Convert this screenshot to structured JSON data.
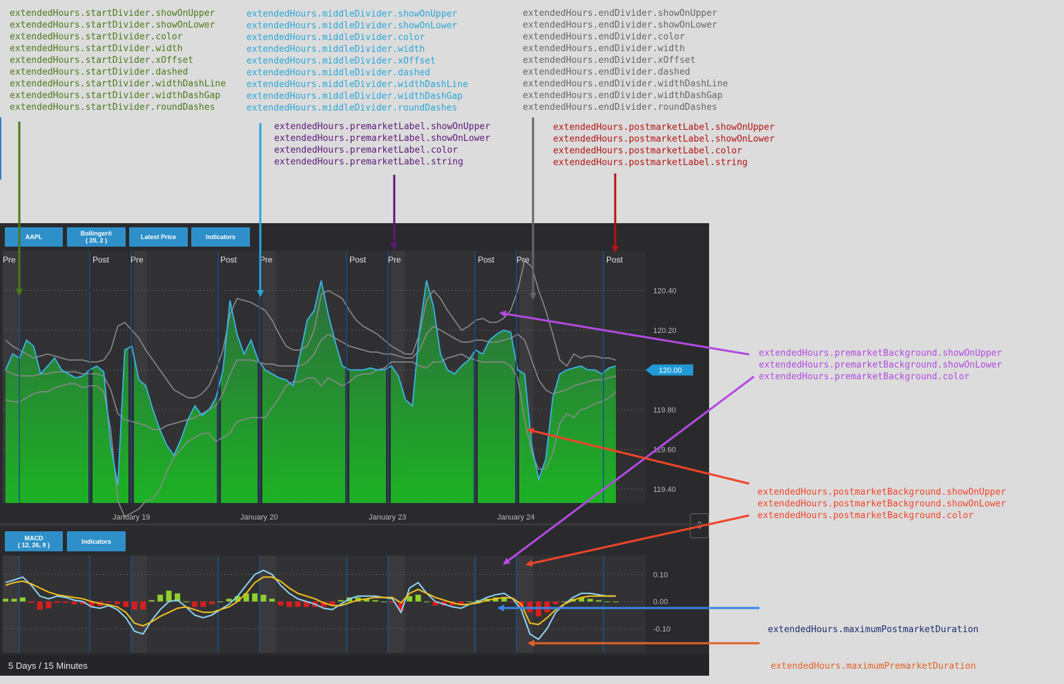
{
  "annotations": {
    "start_divider": {
      "color": "#4a7a1c",
      "lines": [
        "extendedHours.startDivider.showOnUpper",
        "extendedHours.startDivider.showOnLower",
        "extendedHours.startDivider.color",
        "extendedHours.startDivider.width",
        "extendedHours.startDivider.xOffset",
        "extendedHours.startDivider.dashed",
        "extendedHours.startDivider.widthDashLine",
        "extendedHours.startDivider.widthDashGap",
        "extendedHours.startDivider.roundDashes"
      ]
    },
    "middle_divider": {
      "color": "#2aa7d6",
      "lines": [
        "extendedHours.middleDivider.showOnUpper",
        "extendedHours.middleDivider.showOnLower",
        "extendedHours.middleDivider.color",
        "extendedHours.middleDivider.width",
        "extendedHours.middleDivider.xOffset",
        "extendedHours.middleDivider.dashed",
        "extendedHours.middleDivider.widthDashLine",
        "extendedHours.middleDivider.widthDashGap",
        "extendedHours.middleDivider.roundDashes"
      ]
    },
    "end_divider": {
      "color": "#666666",
      "lines": [
        "extendedHours.endDivider.showOnUpper",
        "extendedHours.endDivider.showOnLower",
        "extendedHours.endDivider.color",
        "extendedHours.endDivider.width",
        "extendedHours.endDivider.xOffset",
        "extendedHours.endDivider.dashed",
        "extendedHours.endDivider.widthDashLine",
        "extendedHours.endDivider.widthDashGap",
        "extendedHours.endDivider.roundDashes"
      ]
    },
    "premarket_label": {
      "color": "#5a1a78",
      "lines": [
        "extendedHours.premarketLabel.showOnUpper",
        "extendedHours.premarketLabel.showOnLower",
        "extendedHours.premarketLabel.color",
        "extendedHours.premarketLabel.string"
      ]
    },
    "postmarket_label": {
      "color": "#b31414",
      "lines": [
        "extendedHours.postmarketLabel.showOnUpper",
        "extendedHours.postmarketLabel.showOnLower",
        "extendedHours.postmarketLabel.color",
        "extendedHours.postmarketLabel.string"
      ]
    },
    "premarket_background": {
      "color": "#b24be0",
      "lines": [
        "extendedHours.premarketBackground.showOnUpper",
        "extendedHours.premarketBackground.showOnLower",
        "extendedHours.premarketBackground.color"
      ]
    },
    "postmarket_background": {
      "color": "#f0442a",
      "lines": [
        "extendedHours.postmarketBackground.showOnUpper",
        "extendedHours.postmarketBackground.showOnLower",
        "extendedHours.postmarketBackground.color"
      ]
    },
    "max_postmarket": {
      "color": "#1b2e6e",
      "text": "extendedHours.maximumPostmarketDuration"
    },
    "max_premarket": {
      "color": "#e2622a",
      "text": "extendedHours.maximumPremarketDuration"
    },
    "arrow_colors": {
      "green": "#4a7a1c",
      "blue": "#2aa7d6",
      "purple": "#5a1a78",
      "gray": "#666666",
      "red": "#b31414",
      "magenta": "#b24be0",
      "orange_red": "#f0442a",
      "bright_blue": "#3a84e8",
      "orange": "#e2622a"
    }
  },
  "toolbar_upper": [
    "AAPL",
    "Bollinger®\n( 20, 2 )",
    "Latest Price",
    "Indicators"
  ],
  "toolbar_lower": [
    "MACD\n( 12, 26, 9 )",
    "Indicators"
  ],
  "footer_text": "5 Days / 15 Minutes",
  "collapse_icon": "chevron-collapse-icon",
  "colors": {
    "accent": "#2f8fc8",
    "price_line": "#3ab4e8",
    "fill_top": "#2e6e3e",
    "fill_bottom": "#1cb824",
    "band": "#8a8a8a",
    "premarket_bg": "#3a3a3d",
    "postmarket_bg": "#2f2f31",
    "macd_line": "#8fd3f5",
    "signal_line": "#f2c21c",
    "hist_pos": "#8fd02a",
    "hist_neg": "#d81e1e"
  },
  "chart_data": [
    {
      "type": "line",
      "panel": "upper",
      "sessions": [
        {
          "pre": "Pre",
          "post": "Post"
        },
        {
          "pre": "Pre",
          "post": "Post"
        },
        {
          "pre": "Pre",
          "post": "Post"
        },
        {
          "pre": "Pre",
          "post": "Post"
        },
        {
          "pre": "Pre",
          "post": ""
        }
      ],
      "x_labels": [
        "January 19",
        "January 20",
        "January 23",
        "January 24"
      ],
      "ylim": [
        119.33,
        120.6
      ],
      "yticks": [
        "120.40",
        "120.20",
        "119.80",
        "119.60",
        "119.40"
      ],
      "latest_price": "120.00",
      "series": [
        {
          "values": [
            120.0,
            120.08,
            120.06,
            120.15,
            120.12,
            119.98,
            120.02,
            120.06,
            120.0,
            119.98,
            119.96,
            119.97,
            120.0,
            120.02,
            119.99,
            119.62,
            119.42,
            120.1,
            120.12,
            119.95,
            119.92,
            119.8,
            119.7,
            119.62,
            119.57,
            119.65,
            119.75,
            119.82,
            119.77,
            119.8,
            119.86,
            120.0,
            120.35,
            120.18,
            120.08,
            120.15,
            120.05,
            120.0,
            119.98,
            119.96,
            119.95,
            119.92,
            120.08,
            120.25,
            120.3,
            120.45,
            120.28,
            120.14,
            120.02,
            120.0,
            120.0,
            120.0,
            120.01,
            120.0,
            120.0,
            120.02,
            119.97,
            119.85,
            119.82,
            120.2,
            120.45,
            120.32,
            120.08,
            120.0,
            119.98,
            120.02,
            120.05,
            120.1,
            120.08,
            120.15,
            120.18,
            120.2,
            120.19,
            120.0,
            119.98,
            119.62,
            119.45,
            119.55,
            119.86,
            119.98,
            120.0,
            120.01,
            120.02,
            120.0,
            120.0,
            119.98,
            120.01,
            120.02
          ]
        },
        {
          "values": [
            120.15,
            120.12,
            120.1,
            120.08,
            120.06,
            120.07,
            120.08,
            120.07,
            120.06,
            120.05,
            120.05,
            120.05,
            120.04,
            120.04,
            120.05,
            120.1,
            120.22,
            120.24,
            120.2,
            120.16,
            120.1,
            120.05,
            120.0,
            119.95,
            119.9,
            119.88,
            119.86,
            119.86,
            119.88,
            119.92,
            120.0,
            120.1,
            120.28,
            120.36,
            120.35,
            120.34,
            120.32,
            120.3,
            120.25,
            120.18,
            120.12,
            120.1,
            120.1,
            120.12,
            120.2,
            120.38,
            120.4,
            120.38,
            120.36,
            120.3,
            120.25,
            120.22,
            120.2,
            120.18,
            120.15,
            120.12,
            120.1,
            120.08,
            120.08,
            120.18,
            120.35,
            120.4,
            120.36,
            120.3,
            120.25,
            120.2,
            120.22,
            120.25,
            120.26,
            120.24,
            120.24,
            120.26,
            120.3,
            120.4,
            120.55,
            120.52,
            120.4,
            120.3,
            120.18,
            120.05,
            120.02,
            120.08,
            120.06,
            120.07,
            120.07,
            120.06,
            120.06,
            120.05
          ]
        },
        {
          "values": [
            120.0,
            119.98,
            119.97,
            119.97,
            119.97,
            119.98,
            119.98,
            119.99,
            119.99,
            119.99,
            119.99,
            119.98,
            119.98,
            119.98,
            119.97,
            119.9,
            119.78,
            119.75,
            119.74,
            119.73,
            119.72,
            119.7,
            119.7,
            119.72,
            119.73,
            119.74,
            119.75,
            119.76,
            119.78,
            119.8,
            119.82,
            119.88,
            119.98,
            120.05,
            120.05,
            120.05,
            120.04,
            120.03,
            120.03,
            120.02,
            120.02,
            120.02,
            120.02,
            120.04,
            120.08,
            120.15,
            120.18,
            120.16,
            120.14,
            120.12,
            120.11,
            120.1,
            120.09,
            120.09,
            120.08,
            120.08,
            120.07,
            120.06,
            120.06,
            120.1,
            120.18,
            120.22,
            120.2,
            120.18,
            120.16,
            120.14,
            120.14,
            120.15,
            120.15,
            120.14,
            120.14,
            120.15,
            120.16,
            120.18,
            120.15,
            120.05,
            119.95,
            119.9,
            119.88,
            119.89,
            119.9,
            119.92,
            119.93,
            119.94,
            119.95,
            119.95,
            119.96,
            119.97
          ]
        },
        {
          "values": [
            119.85,
            119.84,
            119.84,
            119.86,
            119.88,
            119.89,
            119.89,
            119.91,
            119.92,
            119.93,
            119.93,
            119.91,
            119.92,
            119.92,
            119.89,
            119.7,
            119.34,
            119.26,
            119.28,
            119.3,
            119.34,
            119.35,
            119.4,
            119.49,
            119.56,
            119.6,
            119.64,
            119.66,
            119.68,
            119.68,
            119.64,
            119.66,
            119.68,
            119.74,
            119.75,
            119.76,
            119.76,
            119.76,
            119.81,
            119.86,
            119.92,
            119.94,
            119.94,
            119.96,
            119.96,
            119.92,
            119.96,
            119.94,
            119.92,
            119.94,
            119.97,
            119.98,
            119.98,
            120.0,
            120.01,
            120.04,
            120.04,
            120.04,
            120.04,
            120.02,
            120.01,
            120.04,
            120.04,
            120.06,
            120.07,
            120.08,
            120.06,
            120.05,
            120.04,
            120.04,
            120.04,
            120.04,
            120.02,
            119.96,
            119.75,
            119.58,
            119.5,
            119.5,
            119.58,
            119.73,
            119.78,
            119.76,
            119.8,
            119.81,
            119.83,
            119.84,
            119.86,
            119.89
          ]
        }
      ]
    },
    {
      "type": "bar",
      "panel": "lower",
      "title": "MACD ( 12, 26, 9 )",
      "ylim": [
        -0.19,
        0.17
      ],
      "yticks": [
        "0.10",
        "0.00",
        "-0.10"
      ],
      "series": [
        {
          "values": [
            0.07,
            0.08,
            0.09,
            0.06,
            0.02,
            0.01,
            0.02,
            0.015,
            0.005,
            0.0,
            -0.02,
            -0.025,
            -0.015,
            -0.03,
            -0.06,
            -0.11,
            -0.12,
            -0.07,
            -0.03,
            0.0,
            0.005,
            -0.02,
            -0.05,
            -0.06,
            -0.05,
            -0.03,
            -0.01,
            0.02,
            0.06,
            0.1,
            0.115,
            0.1,
            0.06,
            0.03,
            0.01,
            0.0,
            -0.01,
            -0.025,
            -0.03,
            -0.01,
            0.01,
            0.02,
            0.02,
            0.02,
            0.015,
            0.01,
            -0.04,
            0.05,
            0.07,
            0.03,
            0.0,
            -0.01,
            -0.02,
            -0.025,
            -0.01,
            0.0,
            0.015,
            0.025,
            0.03,
            0.01,
            -0.03,
            -0.12,
            -0.14,
            -0.1,
            -0.04,
            -0.01,
            0.015,
            0.03,
            0.03,
            0.025,
            0.02,
            0.02
          ]
        },
        {
          "values": [
            0.06,
            0.07,
            0.075,
            0.065,
            0.05,
            0.035,
            0.025,
            0.02,
            0.015,
            0.01,
            0.0,
            -0.008,
            -0.012,
            -0.02,
            -0.04,
            -0.08,
            -0.09,
            -0.075,
            -0.055,
            -0.04,
            -0.025,
            -0.02,
            -0.03,
            -0.04,
            -0.04,
            -0.03,
            -0.02,
            0.0,
            0.03,
            0.07,
            0.09,
            0.09,
            0.075,
            0.05,
            0.03,
            0.02,
            0.01,
            -0.005,
            -0.015,
            -0.015,
            -0.005,
            0.005,
            0.01,
            0.015,
            0.015,
            0.015,
            -0.005,
            0.03,
            0.045,
            0.03,
            0.015,
            0.005,
            -0.005,
            -0.012,
            -0.01,
            -0.005,
            0.005,
            0.01,
            0.015,
            0.012,
            -0.01,
            -0.08,
            -0.085,
            -0.06,
            -0.03,
            -0.01,
            0.005,
            0.015,
            0.02,
            0.02,
            0.02,
            0.02
          ]
        },
        {
          "values": [
            0.01,
            0.01,
            0.015,
            -0.005,
            -0.03,
            -0.025,
            -0.005,
            -0.005,
            -0.01,
            -0.01,
            -0.02,
            -0.017,
            -0.003,
            -0.01,
            -0.02,
            -0.03,
            -0.03,
            0.005,
            0.025,
            0.04,
            0.03,
            0.0,
            -0.02,
            -0.02,
            -0.01,
            0.0,
            0.01,
            0.02,
            0.03,
            0.03,
            0.025,
            0.01,
            -0.015,
            -0.02,
            -0.02,
            -0.02,
            -0.02,
            -0.02,
            -0.015,
            0.005,
            0.015,
            0.015,
            0.01,
            0.005,
            0.0,
            -0.005,
            -0.035,
            0.02,
            0.025,
            0.0,
            -0.015,
            -0.015,
            -0.015,
            -0.013,
            0.0,
            0.005,
            0.01,
            0.015,
            0.015,
            -0.002,
            -0.02,
            -0.04,
            -0.055,
            -0.04,
            -0.01,
            0.0,
            0.01,
            0.015,
            0.01,
            0.005,
            0.0,
            0.0
          ]
        }
      ]
    }
  ]
}
